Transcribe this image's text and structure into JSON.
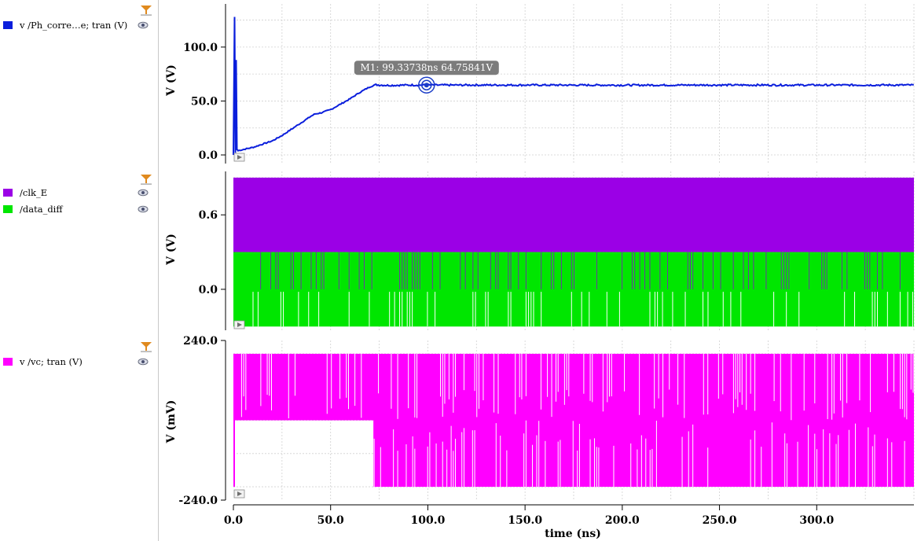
{
  "colors": {
    "ph": "#0a1edc",
    "clk": "#9b00e6",
    "data": "#00e600",
    "vc": "#ff00ff",
    "grid": "#d0d0d0",
    "filter": "#e08a1e"
  },
  "legend": {
    "panel1": [
      {
        "label": "v /Ph_corre…e; tran (V)",
        "color": "#0a1edc"
      }
    ],
    "panel2": [
      {
        "label": "/clk_E",
        "color": "#9b00e6"
      },
      {
        "label": "/data_diff",
        "color": "#00e600"
      }
    ],
    "panel3": [
      {
        "label": "v /vc; tran (V)",
        "color": "#ff00ff"
      }
    ]
  },
  "marker": {
    "label": "M1: 99.33738ns 64.75841V",
    "x": 99.33738,
    "y": 64.75841
  },
  "chart_data": [
    {
      "type": "line",
      "series": [
        {
          "name": "v /Ph_corre…e; tran (V)",
          "x": [
            0,
            0.6,
            1.0,
            1.4,
            1.8,
            2.5,
            5,
            10,
            15,
            20,
            25,
            30,
            35,
            40,
            42,
            45,
            50,
            55,
            60,
            65,
            70,
            73,
            80,
            90,
            100,
            150,
            200,
            250,
            300,
            350
          ],
          "y": [
            0,
            128,
            2,
            88,
            5,
            4,
            5,
            7,
            10,
            13,
            18,
            24,
            30,
            36,
            38,
            39,
            42,
            47,
            52,
            58,
            63,
            65,
            64.5,
            64.8,
            64.75,
            64.8,
            64.7,
            64.8,
            64.75,
            64.8
          ]
        }
      ],
      "ylabel": "V (V)",
      "yticks": [
        "0.0",
        "50.0",
        "100.0"
      ],
      "ylim": [
        -8,
        140
      ],
      "xlim": [
        0,
        350
      ],
      "grid": true
    },
    {
      "type": "area",
      "series": [
        {
          "name": "/clk_E",
          "low": 0.3,
          "high": 0.9
        },
        {
          "name": "/data_diff",
          "low": -0.3,
          "high": 0.3
        }
      ],
      "ylabel": "V (V)",
      "yticks": [
        "0.0",
        "0.6"
      ],
      "ylim": [
        -0.33,
        0.95
      ],
      "xlim": [
        0,
        350
      ],
      "grid": true
    },
    {
      "type": "area",
      "series": [
        {
          "name": "v /vc; tran (V)",
          "high": 200,
          "mid": 0,
          "low": -200,
          "lower_band_start": 72
        }
      ],
      "ylabel": "V (mV)",
      "yticks": [
        "-240.0",
        "240.0"
      ],
      "ylim": [
        -240,
        240
      ],
      "xlim": [
        0,
        350
      ],
      "grid": true
    }
  ],
  "xaxis": {
    "label": "time (ns)",
    "ticks": [
      {
        "value": 0,
        "label": "0.0"
      },
      {
        "value": 50,
        "label": "50.0"
      },
      {
        "value": 100,
        "label": "100.0"
      },
      {
        "value": 150,
        "label": "150.0"
      },
      {
        "value": 200,
        "label": "200.0"
      },
      {
        "value": 250,
        "label": "250.0"
      },
      {
        "value": 300,
        "label": "300.0"
      }
    ]
  }
}
